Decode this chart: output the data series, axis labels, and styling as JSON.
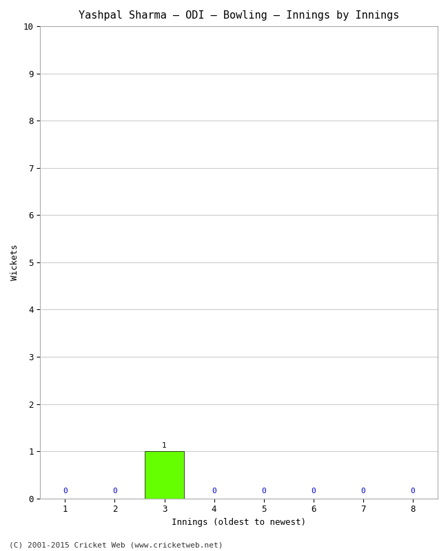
{
  "title": "Yashpal Sharma – ODI – Bowling – Innings by Innings",
  "xlabel": "Innings (oldest to newest)",
  "ylabel": "Wickets",
  "categories": [
    1,
    2,
    3,
    4,
    5,
    6,
    7,
    8
  ],
  "values": [
    0,
    0,
    1,
    0,
    0,
    0,
    0,
    0
  ],
  "bar_color_nonzero": "#66ff00",
  "annotation_color_zero": "#0000cc",
  "annotation_color_nonzero": "#000000",
  "ylim": [
    0,
    10
  ],
  "yticks": [
    0,
    1,
    2,
    3,
    4,
    5,
    6,
    7,
    8,
    9,
    10
  ],
  "xticks": [
    1,
    2,
    3,
    4,
    5,
    6,
    7,
    8
  ],
  "background_color": "#ffffff",
  "grid_color": "#cccccc",
  "title_fontsize": 11,
  "axis_label_fontsize": 9,
  "tick_fontsize": 9,
  "annotation_fontsize": 8,
  "footer": "(C) 2001-2015 Cricket Web (www.cricketweb.net)",
  "footer_fontsize": 8
}
